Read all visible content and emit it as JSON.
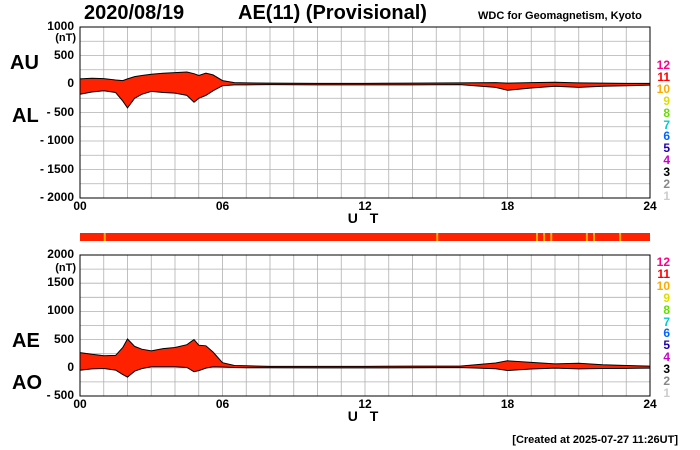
{
  "header": {
    "date": "2020/08/19",
    "title": "AE(11) (Provisional)",
    "org": "WDC for Geomagnetism, Kyoto"
  },
  "footer": {
    "created": "[Created at 2025-07-27 11:26UT]"
  },
  "colors": {
    "fill": "#ff2200",
    "grid": "#b0b0b0",
    "outline": "#000000",
    "legend": [
      "#cccccc",
      "#888888",
      "#000000",
      "#cc00cc",
      "#2200aa",
      "#0066ff",
      "#00cccc",
      "#66dd00",
      "#dddd00",
      "#ffaa00",
      "#ff0000",
      "#ff0088"
    ]
  },
  "legend": [
    "1",
    "2",
    "3",
    "4",
    "5",
    "6",
    "7",
    "8",
    "9",
    "10",
    "11",
    "12"
  ],
  "chart_data": [
    {
      "type": "area",
      "title": "AU / AL",
      "series_labels": [
        "AU",
        "AL"
      ],
      "unit": "(nT)",
      "xlabel": "U T",
      "xlim": [
        0,
        24
      ],
      "ylim": [
        -2000,
        1000
      ],
      "x_ticks": [
        "00",
        "06",
        "12",
        "18",
        "24"
      ],
      "y_ticks": [
        "1000",
        "500",
        "0",
        "- 500",
        "- 1000",
        "- 1500",
        "- 2000"
      ],
      "x": [
        0,
        0.5,
        1,
        1.5,
        1.8,
        2,
        2.3,
        2.6,
        3,
        3.5,
        4,
        4.5,
        4.8,
        5,
        5.3,
        5.6,
        6,
        6.5,
        7,
        8,
        10,
        12,
        14,
        16,
        17.5,
        18,
        19,
        20,
        21,
        22,
        23,
        24
      ],
      "series": [
        {
          "name": "AU",
          "values": [
            90,
            100,
            95,
            70,
            60,
            90,
            130,
            150,
            170,
            190,
            200,
            210,
            180,
            150,
            190,
            160,
            60,
            25,
            20,
            15,
            10,
            10,
            15,
            20,
            25,
            15,
            25,
            30,
            20,
            15,
            10,
            10
          ]
        },
        {
          "name": "AL",
          "values": [
            -180,
            -140,
            -120,
            -150,
            -300,
            -420,
            -250,
            -180,
            -130,
            -150,
            -160,
            -200,
            -320,
            -250,
            -200,
            -120,
            -30,
            -15,
            -15,
            -10,
            -15,
            -15,
            -15,
            -10,
            -60,
            -110,
            -70,
            -40,
            -60,
            -40,
            -30,
            -20
          ]
        }
      ]
    },
    {
      "type": "area",
      "title": "AE / AO",
      "series_labels": [
        "AE",
        "AO"
      ],
      "unit": "(nT)",
      "xlabel": "U T",
      "xlim": [
        0,
        24
      ],
      "ylim": [
        -500,
        2000
      ],
      "x_ticks": [
        "00",
        "06",
        "12",
        "18",
        "24"
      ],
      "y_ticks": [
        "2000",
        "1500",
        "1000",
        "500",
        "0",
        "- 500"
      ],
      "x": [
        0,
        0.5,
        1,
        1.5,
        1.8,
        2,
        2.3,
        2.6,
        3,
        3.5,
        4,
        4.5,
        4.8,
        5,
        5.3,
        5.6,
        6,
        6.5,
        7,
        8,
        10,
        12,
        14,
        16,
        17.5,
        18,
        19,
        20,
        21,
        22,
        23,
        24
      ],
      "series": [
        {
          "name": "AE",
          "values": [
            270,
            240,
            215,
            220,
            360,
            510,
            380,
            330,
            300,
            340,
            360,
            410,
            500,
            400,
            390,
            280,
            90,
            40,
            35,
            25,
            25,
            25,
            30,
            30,
            85,
            125,
            95,
            70,
            80,
            55,
            40,
            30
          ]
        },
        {
          "name": "AO",
          "values": [
            -45,
            -20,
            -12,
            -40,
            -120,
            -165,
            -60,
            -15,
            20,
            20,
            20,
            5,
            -70,
            -50,
            -5,
            20,
            15,
            5,
            2,
            2,
            -2,
            -2,
            0,
            5,
            -17,
            -47,
            -22,
            -5,
            -20,
            -12,
            -10,
            -5
          ]
        }
      ]
    }
  ],
  "activity_bar": {
    "base_color": "#ff2200",
    "marks": [
      {
        "t": 1.0,
        "color": "#ffaa00"
      },
      {
        "t": 15.0,
        "color": "#ffaa00"
      },
      {
        "t": 19.2,
        "color": "#ffaa00"
      },
      {
        "t": 19.5,
        "color": "#ffaa00"
      },
      {
        "t": 19.8,
        "color": "#ffaa00"
      },
      {
        "t": 21.3,
        "color": "#ffaa00"
      },
      {
        "t": 21.6,
        "color": "#ffaa00"
      },
      {
        "t": 22.7,
        "color": "#ffaa00"
      }
    ]
  }
}
